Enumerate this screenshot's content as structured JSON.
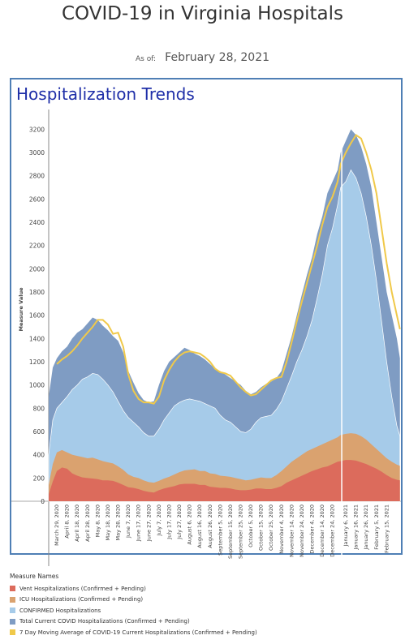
{
  "header": {
    "title": "COVID-19 in Virginia Hospitals",
    "asof_label": "As of:",
    "asof_date": "February 28, 2021"
  },
  "panel": {
    "title": "Hospitalization Trends"
  },
  "chart_data": {
    "type": "area",
    "ylabel": "Measure Value",
    "ylim": [
      0,
      3300
    ],
    "yticks": [
      0,
      200,
      400,
      600,
      800,
      1000,
      1200,
      1400,
      1600,
      1800,
      2000,
      2200,
      2400,
      2600,
      2800,
      3000,
      3200
    ],
    "xlim": [
      "2020-03-21",
      "2021-03-01"
    ],
    "grid": false,
    "xtick_labels": [
      {
        "date": "2020-03-29",
        "label": "March 29, 2020"
      },
      {
        "date": "2020-04-08",
        "label": "April 8, 2020"
      },
      {
        "date": "2020-04-18",
        "label": "April 18, 2020"
      },
      {
        "date": "2020-04-28",
        "label": "April 28, 2020"
      },
      {
        "date": "2020-05-08",
        "label": "May 8, 2020"
      },
      {
        "date": "2020-05-18",
        "label": "May 18, 2020"
      },
      {
        "date": "2020-05-28",
        "label": "May 28, 2020"
      },
      {
        "date": "2020-06-07",
        "label": "June 7, 2020"
      },
      {
        "date": "2020-06-17",
        "label": "June 17, 2020"
      },
      {
        "date": "2020-06-27",
        "label": "June 27, 2020"
      },
      {
        "date": "2020-07-07",
        "label": "July 7, 2020"
      },
      {
        "date": "2020-07-17",
        "label": "July 17, 2020"
      },
      {
        "date": "2020-07-27",
        "label": "July 27, 2020"
      },
      {
        "date": "2020-08-06",
        "label": "August 6, 2020"
      },
      {
        "date": "2020-08-16",
        "label": "August 16, 2020"
      },
      {
        "date": "2020-08-26",
        "label": "August 26, 2020"
      },
      {
        "date": "2020-09-05",
        "label": "September 5, 2020"
      },
      {
        "date": "2020-09-15",
        "label": "September 15, 2020"
      },
      {
        "date": "2020-09-25",
        "label": "September 25, 2020"
      },
      {
        "date": "2020-10-05",
        "label": "October 5, 2020"
      },
      {
        "date": "2020-10-15",
        "label": "October 15, 2020"
      },
      {
        "date": "2020-10-25",
        "label": "October 25, 2020"
      },
      {
        "date": "2020-11-04",
        "label": "November 4, 2020"
      },
      {
        "date": "2020-11-14",
        "label": "November 14, 2020"
      },
      {
        "date": "2020-11-24",
        "label": "November 24, 2020"
      },
      {
        "date": "2020-12-04",
        "label": "December 4, 2020"
      },
      {
        "date": "2020-12-14",
        "label": "December 14, 2020"
      },
      {
        "date": "2020-12-24",
        "label": "December 24, 2020"
      },
      {
        "date": "2021-01-06",
        "label": "January 6, 2021"
      },
      {
        "date": "2021-01-16",
        "label": "January 16, 2021"
      },
      {
        "date": "2021-01-26",
        "label": "January 26, 2021"
      },
      {
        "date": "2021-02-05",
        "label": "February 5, 2021"
      },
      {
        "date": "2021-02-15",
        "label": "February 15, 2021"
      }
    ],
    "x": [
      "2020-03-21",
      "2020-03-25",
      "2020-03-29",
      "2020-04-03",
      "2020-04-08",
      "2020-04-13",
      "2020-04-18",
      "2020-04-23",
      "2020-04-28",
      "2020-05-03",
      "2020-05-08",
      "2020-05-13",
      "2020-05-18",
      "2020-05-23",
      "2020-05-28",
      "2020-06-02",
      "2020-06-07",
      "2020-06-12",
      "2020-06-17",
      "2020-06-22",
      "2020-06-27",
      "2020-07-02",
      "2020-07-07",
      "2020-07-12",
      "2020-07-17",
      "2020-07-22",
      "2020-07-27",
      "2020-08-01",
      "2020-08-06",
      "2020-08-11",
      "2020-08-16",
      "2020-08-21",
      "2020-08-26",
      "2020-08-31",
      "2020-09-05",
      "2020-09-10",
      "2020-09-15",
      "2020-09-20",
      "2020-09-25",
      "2020-09-30",
      "2020-10-05",
      "2020-10-10",
      "2020-10-15",
      "2020-10-20",
      "2020-10-25",
      "2020-10-30",
      "2020-11-04",
      "2020-11-09",
      "2020-11-14",
      "2020-11-19",
      "2020-11-24",
      "2020-11-29",
      "2020-12-04",
      "2020-12-09",
      "2020-12-14",
      "2020-12-19",
      "2020-12-24",
      "2020-12-29",
      "2021-01-01",
      "2021-01-06",
      "2021-01-11",
      "2021-01-16",
      "2021-01-21",
      "2021-01-26",
      "2021-01-31",
      "2021-02-05",
      "2021-02-10",
      "2021-02-15",
      "2021-02-20",
      "2021-02-25",
      "2021-02-28"
    ],
    "series": [
      {
        "name": "Vent Hospitalizations (Confirmed + Pending)",
        "color": "#dc6b5c",
        "values": [
          60,
          170,
          260,
          290,
          280,
          240,
          220,
          205,
          200,
          195,
          190,
          180,
          180,
          175,
          160,
          140,
          120,
          115,
          105,
          90,
          80,
          75,
          95,
          110,
          120,
          130,
          145,
          150,
          150,
          150,
          140,
          140,
          125,
          120,
          115,
          115,
          110,
          100,
          95,
          95,
          100,
          110,
          110,
          105,
          105,
          115,
          130,
          160,
          180,
          200,
          220,
          240,
          260,
          275,
          290,
          300,
          320,
          340,
          345,
          355,
          355,
          350,
          335,
          320,
          300,
          280,
          255,
          225,
          200,
          185,
          180
        ]
      },
      {
        "name": "ICU Hospitalizations (Confirmed + Pending)",
        "color": "#daa26f",
        "values": [
          140,
          320,
          420,
          440,
          420,
          400,
          390,
          380,
          370,
          375,
          360,
          345,
          335,
          325,
          300,
          270,
          230,
          210,
          200,
          180,
          165,
          160,
          175,
          195,
          210,
          230,
          250,
          265,
          270,
          275,
          260,
          260,
          240,
          235,
          220,
          215,
          210,
          200,
          190,
          180,
          185,
          195,
          205,
          200,
          200,
          225,
          260,
          300,
          340,
          370,
          400,
          430,
          450,
          470,
          490,
          510,
          530,
          550,
          570,
          580,
          585,
          580,
          560,
          530,
          490,
          450,
          410,
          370,
          340,
          315,
          305
        ]
      },
      {
        "name": "CONFIRMED Hospitalizations",
        "color": "#a6cbe9",
        "values": [
          400,
          700,
          800,
          850,
          900,
          960,
          1000,
          1050,
          1070,
          1100,
          1090,
          1050,
          1000,
          940,
          860,
          780,
          720,
          680,
          640,
          590,
          560,
          560,
          620,
          700,
          760,
          820,
          850,
          870,
          880,
          870,
          860,
          840,
          820,
          800,
          740,
          700,
          680,
          640,
          600,
          590,
          620,
          680,
          720,
          730,
          740,
          790,
          860,
          970,
          1080,
          1200,
          1300,
          1420,
          1560,
          1750,
          1950,
          2200,
          2350,
          2550,
          2700,
          2750,
          2850,
          2780,
          2650,
          2450,
          2200,
          1900,
          1550,
          1200,
          900,
          650,
          560
        ]
      },
      {
        "name": "Total Current COVID Hospitalizations (Confirmed + Pending)",
        "color": "#7f9cc3",
        "values": [
          900,
          1150,
          1230,
          1290,
          1330,
          1400,
          1450,
          1480,
          1530,
          1580,
          1560,
          1510,
          1470,
          1420,
          1380,
          1280,
          1120,
          1020,
          930,
          870,
          850,
          860,
          1000,
          1120,
          1200,
          1240,
          1280,
          1320,
          1300,
          1270,
          1250,
          1220,
          1180,
          1140,
          1120,
          1090,
          1060,
          1030,
          1000,
          950,
          920,
          940,
          980,
          1010,
          1030,
          1060,
          1120,
          1270,
          1420,
          1600,
          1780,
          1950,
          2100,
          2300,
          2450,
          2650,
          2750,
          2850,
          3000,
          3100,
          3200,
          3150,
          3050,
          2900,
          2700,
          2400,
          2100,
          1800,
          1600,
          1400,
          1230
        ]
      },
      {
        "name": "7 Day Moving Average of COVID-19 Current Hospitalizations (Confirmed + Pending)",
        "color": "#f0c94a",
        "values": [
          null,
          null,
          1180,
          1220,
          1250,
          1290,
          1340,
          1400,
          1450,
          1500,
          1560,
          1560,
          1520,
          1440,
          1450,
          1330,
          1090,
          950,
          880,
          850,
          850,
          840,
          900,
          1040,
          1130,
          1200,
          1250,
          1280,
          1290,
          1280,
          1270,
          1240,
          1200,
          1140,
          1110,
          1100,
          1080,
          1030,
          980,
          940,
          910,
          920,
          960,
          1000,
          1040,
          1060,
          1070,
          1200,
          1370,
          1550,
          1720,
          1880,
          2040,
          2200,
          2380,
          2530,
          2620,
          2750,
          2900,
          3000,
          3080,
          3150,
          3120,
          3000,
          2850,
          2650,
          2350,
          2050,
          1800,
          1600,
          1480
        ]
      }
    ],
    "reference_line_date": "2021-01-02"
  },
  "legend": {
    "title": "Measure Names"
  }
}
